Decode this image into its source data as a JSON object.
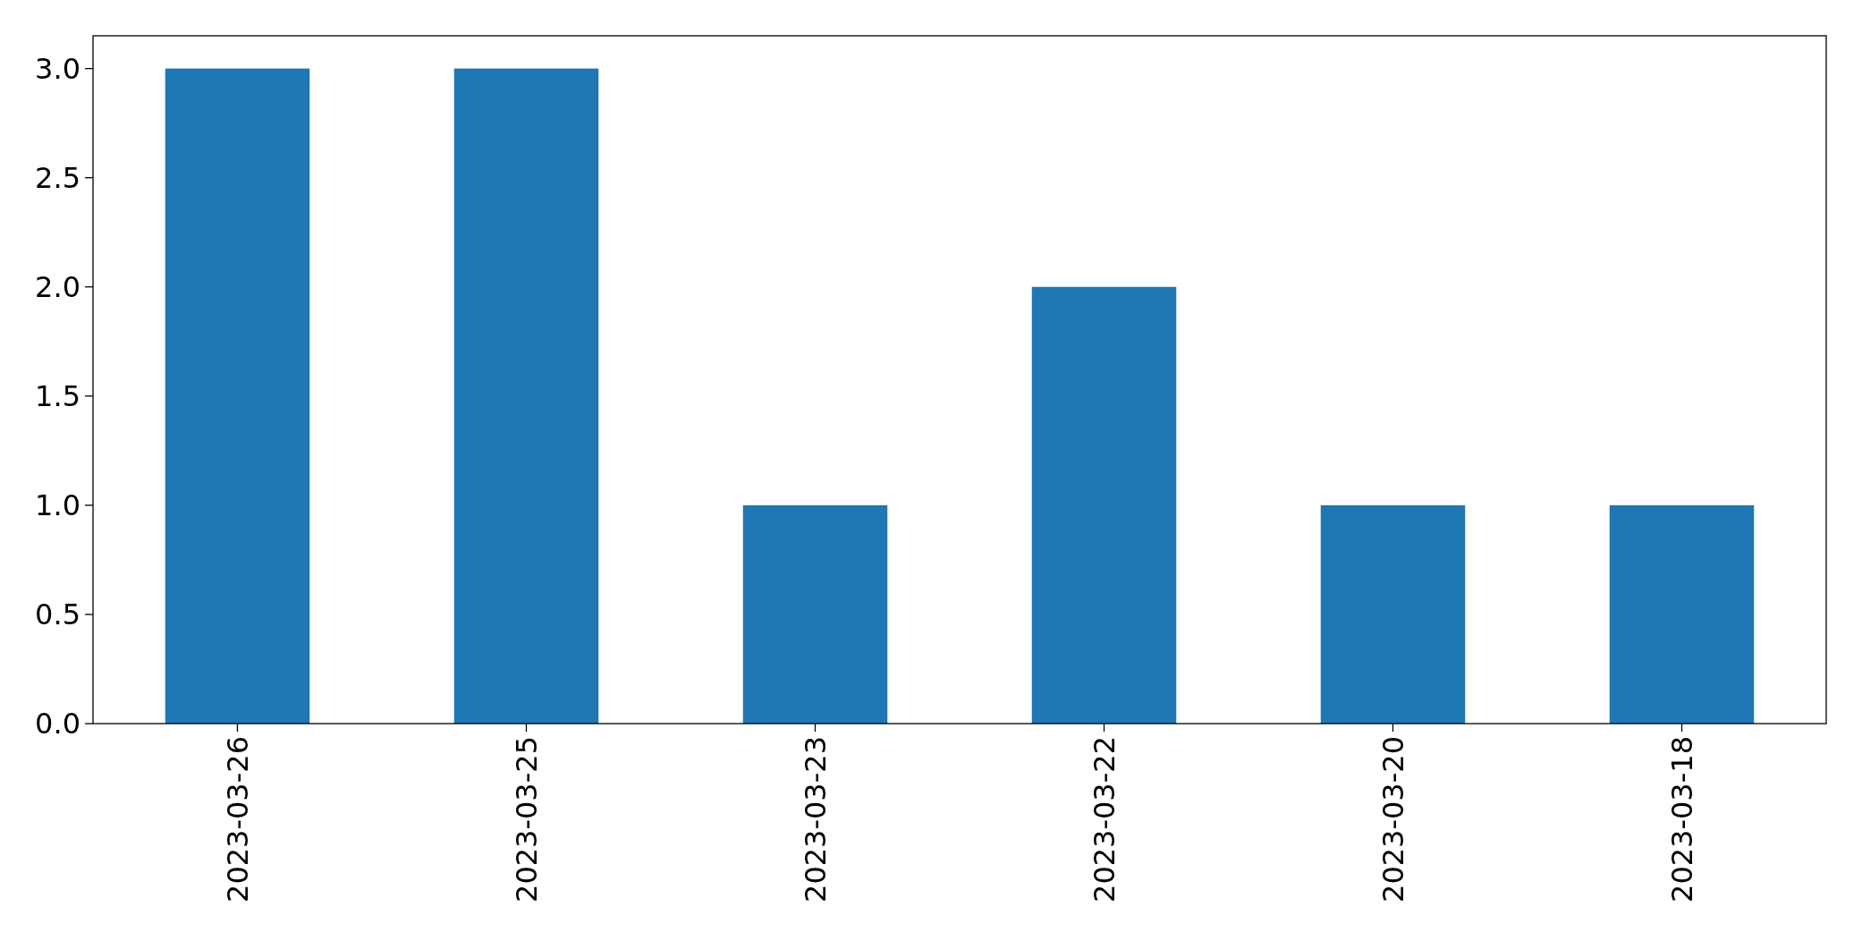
{
  "chart_data": {
    "type": "bar",
    "categories": [
      "2023-03-26",
      "2023-03-25",
      "2023-03-23",
      "2023-03-22",
      "2023-03-20",
      "2023-03-18"
    ],
    "values": [
      3,
      3,
      1,
      2,
      1,
      1
    ],
    "color": "#1f77b4",
    "ylim": [
      0,
      3.15
    ],
    "yticks": [
      {
        "value": 0,
        "label": "0.0"
      },
      {
        "value": 0.5,
        "label": "0.5"
      },
      {
        "value": 1,
        "label": "1.0"
      },
      {
        "value": 1.5,
        "label": "1.5"
      },
      {
        "value": 2,
        "label": "2.0"
      },
      {
        "value": 2.5,
        "label": "2.5"
      },
      {
        "value": 3,
        "label": "3.0"
      }
    ],
    "grid": false
  }
}
